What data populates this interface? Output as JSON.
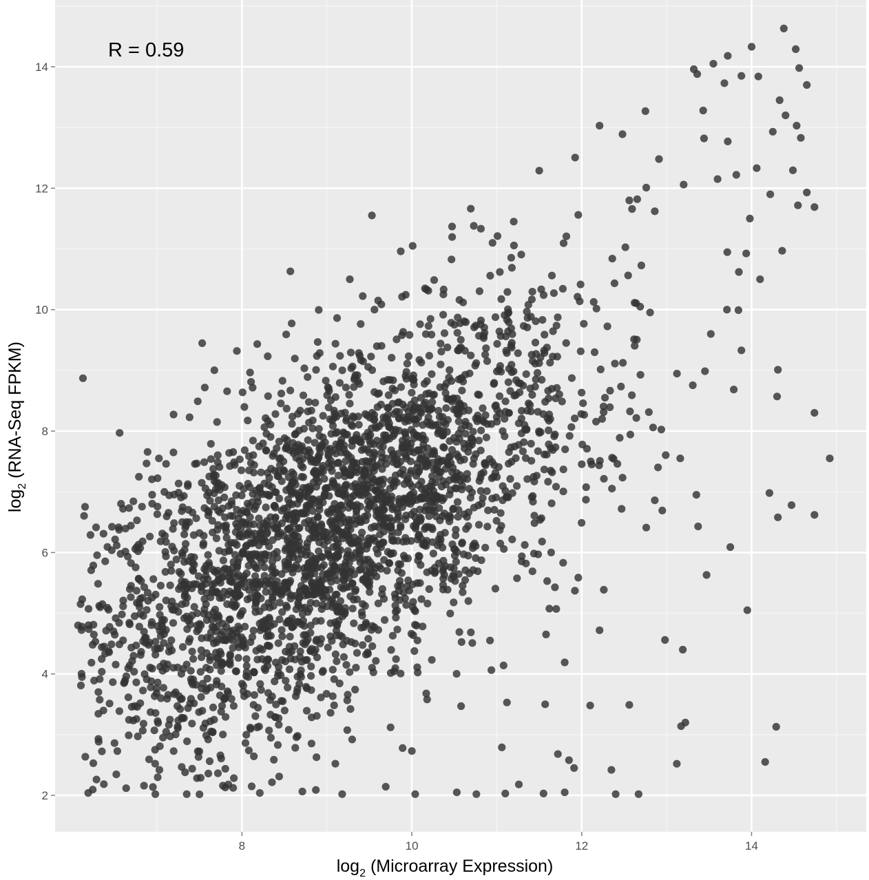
{
  "chart_data": {
    "type": "scatter",
    "title": "",
    "annotation": "R =  0.59",
    "xlabel": {
      "main": "log",
      "sub": "2",
      "rest": " (Microarray Expression)"
    },
    "ylabel": {
      "main": "log",
      "sub": "2",
      "rest": " (RNA-Seq FPKM)"
    },
    "xlim": [
      5.8,
      15.35
    ],
    "ylim": [
      1.4,
      15.1
    ],
    "xticks": [
      8,
      10,
      12,
      14
    ],
    "yticks": [
      2,
      4,
      6,
      8,
      10,
      12,
      14
    ],
    "xtick_labels": [
      "8",
      "10",
      "12",
      "14"
    ],
    "ytick_labels": [
      "2",
      "4",
      "6",
      "8",
      "10",
      "12",
      "14"
    ],
    "grid": true,
    "legend": "none",
    "point_color": "#333333",
    "panel_color": "#ebebeb",
    "grid_color": "#ffffff",
    "n_points": 3000,
    "correlation": 0.59,
    "points": [
      [
        14.38,
        14.63
      ],
      [
        14.0,
        14.33
      ],
      [
        13.72,
        14.18
      ],
      [
        13.55,
        14.05
      ],
      [
        13.68,
        13.73
      ],
      [
        13.32,
        13.96
      ],
      [
        14.52,
        14.29
      ],
      [
        14.56,
        13.98
      ],
      [
        14.65,
        13.7
      ],
      [
        14.08,
        13.84
      ],
      [
        13.88,
        13.85
      ],
      [
        13.36,
        13.88
      ],
      [
        14.33,
        13.45
      ],
      [
        14.4,
        13.2
      ],
      [
        14.53,
        13.03
      ],
      [
        14.58,
        12.83
      ],
      [
        14.25,
        12.93
      ],
      [
        14.06,
        12.33
      ],
      [
        13.72,
        12.77
      ],
      [
        13.43,
        13.28
      ],
      [
        13.44,
        12.82
      ],
      [
        13.82,
        12.22
      ],
      [
        13.6,
        12.15
      ],
      [
        13.98,
        11.5
      ],
      [
        14.22,
        11.9
      ],
      [
        14.65,
        11.93
      ],
      [
        14.74,
        11.69
      ],
      [
        14.36,
        10.97
      ],
      [
        14.1,
        10.5
      ],
      [
        13.85,
        10.62
      ],
      [
        13.71,
        10.0
      ],
      [
        13.52,
        9.6
      ],
      [
        13.88,
        9.33
      ],
      [
        14.31,
        9.01
      ],
      [
        14.3,
        8.57
      ],
      [
        14.74,
        8.3
      ],
      [
        14.92,
        7.55
      ],
      [
        14.74,
        6.62
      ],
      [
        14.47,
        6.78
      ],
      [
        14.21,
        6.98
      ],
      [
        14.31,
        6.58
      ],
      [
        13.75,
        6.09
      ],
      [
        13.47,
        5.63
      ],
      [
        13.37,
        6.43
      ],
      [
        13.16,
        7.55
      ],
      [
        13.35,
        6.95
      ],
      [
        13.95,
        5.05
      ],
      [
        14.29,
        3.13
      ],
      [
        14.16,
        2.55
      ],
      [
        13.22,
        3.2
      ],
      [
        13.17,
        3.14
      ],
      [
        13.12,
        2.52
      ],
      [
        12.98,
        4.56
      ],
      [
        13.19,
        4.4
      ],
      [
        12.56,
        3.49
      ],
      [
        12.1,
        3.48
      ],
      [
        12.35,
        2.42
      ],
      [
        12.4,
        2.02
      ],
      [
        12.67,
        2.02
      ],
      [
        12.21,
        4.72
      ],
      [
        11.57,
        3.5
      ],
      [
        11.8,
        2.05
      ],
      [
        11.91,
        2.45
      ],
      [
        11.85,
        2.58
      ],
      [
        11.72,
        2.68
      ],
      [
        11.26,
        2.18
      ],
      [
        12.76,
        6.41
      ],
      [
        12.86,
        6.86
      ],
      [
        12.42,
        7.46
      ],
      [
        12.24,
        8.2
      ],
      [
        12.59,
        8.59
      ],
      [
        12.84,
        8.06
      ],
      [
        12.21,
        13.03
      ],
      [
        12.48,
        12.89
      ],
      [
        12.75,
        13.27
      ],
      [
        11.5,
        12.29
      ],
      [
        12.91,
        12.48
      ],
      [
        12.76,
        12.01
      ],
      [
        13.2,
        12.06
      ],
      [
        12.86,
        11.62
      ],
      [
        12.56,
        11.8
      ],
      [
        12.36,
        10.84
      ],
      [
        11.96,
        11.56
      ],
      [
        11.2,
        11.45
      ],
      [
        10.73,
        11.38
      ],
      [
        10.95,
        11.1
      ],
      [
        10.01,
        11.05
      ],
      [
        9.87,
        10.96
      ],
      [
        9.27,
        10.5
      ],
      [
        8.57,
        10.63
      ],
      [
        9.56,
        10.0
      ],
      [
        7.94,
        9.32
      ],
      [
        7.48,
        8.49
      ],
      [
        6.56,
        7.97
      ],
      [
        6.37,
        6.31
      ],
      [
        6.6,
        6.72
      ],
      [
        6.1,
        5.15
      ],
      [
        6.07,
        4.8
      ],
      [
        6.26,
        3.89
      ],
      [
        6.25,
        2.53
      ],
      [
        6.19,
        2.04
      ],
      [
        6.31,
        2.93
      ],
      [
        6.98,
        2.02
      ],
      [
        7.35,
        2.02
      ],
      [
        7.84,
        2.18
      ],
      [
        8.21,
        2.04
      ],
      [
        8.87,
        2.09
      ],
      [
        9.18,
        2.02
      ],
      [
        10.04,
        2.02
      ],
      [
        10.53,
        2.05
      ],
      [
        10.76,
        2.02
      ],
      [
        11.1,
        2.03
      ],
      [
        11.55,
        2.03
      ],
      [
        11.7,
        5.07
      ],
      [
        11.92,
        5.37
      ],
      [
        12.05,
        6.87
      ],
      [
        11.36,
        7.21
      ],
      [
        11.12,
        6.92
      ],
      [
        11.64,
        6.0
      ],
      [
        10.61,
        5.97
      ],
      [
        10.37,
        5.57
      ],
      [
        10.56,
        4.69
      ],
      [
        10.92,
        4.55
      ],
      [
        11.08,
        4.14
      ],
      [
        11.58,
        4.65
      ],
      [
        11.8,
        4.19
      ],
      [
        11.12,
        3.53
      ],
      [
        11.06,
        2.79
      ],
      [
        10.58,
        3.47
      ],
      [
        10.18,
        3.58
      ],
      [
        10.0,
        2.73
      ],
      [
        9.75,
        3.12
      ]
    ]
  }
}
